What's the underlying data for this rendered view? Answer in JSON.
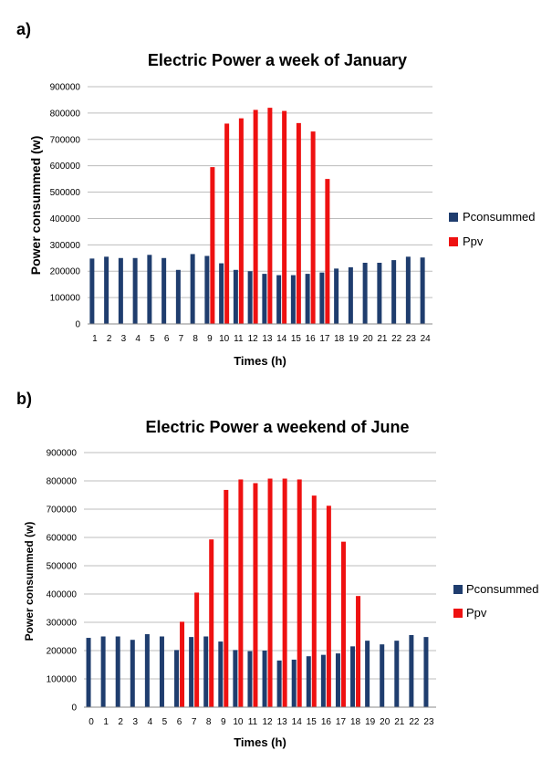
{
  "chart_data": [
    {
      "panel_label": "a)",
      "type": "bar",
      "title": "Electric Power a week of January",
      "xlabel": "Times (h)",
      "ylabel": "Power consummed (w)",
      "ylim": [
        0,
        900000
      ],
      "yticks": [
        "0",
        "100000",
        "200000",
        "300000",
        "400000",
        "500000",
        "600000",
        "700000",
        "800000",
        "900000"
      ],
      "grid": true,
      "legend_position": "right",
      "categories": [
        "1",
        "2",
        "3",
        "4",
        "5",
        "6",
        "7",
        "8",
        "9",
        "10",
        "11",
        "12",
        "13",
        "14",
        "15",
        "16",
        "17",
        "18",
        "19",
        "20",
        "21",
        "22",
        "23",
        "24"
      ],
      "series": [
        {
          "name": "Pconsummed",
          "color": "#1F3D6E",
          "values": [
            248000,
            255000,
            250000,
            250000,
            262000,
            250000,
            205000,
            265000,
            258000,
            230000,
            205000,
            200000,
            190000,
            185000,
            185000,
            190000,
            195000,
            210000,
            215000,
            232000,
            232000,
            242000,
            255000,
            252000
          ]
        },
        {
          "name": "Ppv",
          "color": "#EE1111",
          "values": [
            null,
            null,
            null,
            null,
            null,
            null,
            null,
            null,
            595000,
            760000,
            780000,
            812000,
            820000,
            808000,
            762000,
            730000,
            550000,
            null,
            null,
            null,
            null,
            null,
            null,
            null
          ]
        }
      ]
    },
    {
      "panel_label": "b)",
      "type": "bar",
      "title": "Electric Power a weekend of June",
      "xlabel": "Times (h)",
      "ylabel": "Power consummed (w)",
      "ylim": [
        0,
        900000
      ],
      "yticks": [
        "0",
        "100000",
        "200000",
        "300000",
        "400000",
        "500000",
        "600000",
        "700000",
        "800000",
        "900000"
      ],
      "grid": true,
      "legend_position": "right",
      "categories": [
        "0",
        "1",
        "2",
        "3",
        "4",
        "5",
        "6",
        "7",
        "8",
        "9",
        "10",
        "11",
        "12",
        "13",
        "14",
        "15",
        "16",
        "17",
        "18",
        "19",
        "20",
        "21",
        "22",
        "23"
      ],
      "series": [
        {
          "name": "Pconsummed",
          "color": "#1F3D6E",
          "values": [
            245000,
            250000,
            250000,
            238000,
            258000,
            250000,
            202000,
            248000,
            250000,
            232000,
            202000,
            198000,
            200000,
            165000,
            168000,
            180000,
            185000,
            190000,
            215000,
            235000,
            222000,
            235000,
            255000,
            248000
          ]
        },
        {
          "name": "Ppv",
          "color": "#EE1111",
          "values": [
            null,
            null,
            null,
            null,
            null,
            null,
            302000,
            405000,
            593000,
            768000,
            805000,
            792000,
            808000,
            808000,
            805000,
            748000,
            712000,
            585000,
            393000,
            null,
            null,
            null,
            null,
            null
          ]
        }
      ]
    }
  ]
}
